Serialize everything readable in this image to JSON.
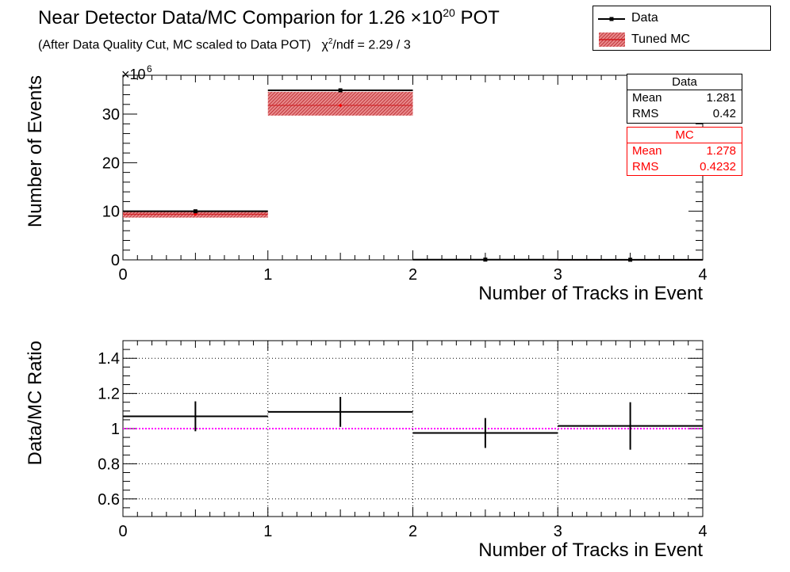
{
  "title": {
    "main": "Near Detector Data/MC Comparion for 1.26 ×10",
    "exponent": "20",
    "suffix": " POT"
  },
  "subtitle": {
    "left": "(After Data Quality Cut, MC scaled to Data POT)",
    "chi_symbol": "χ",
    "chi_exp": "2",
    "chi_rest": "/ndf = 2.29 / 3"
  },
  "legend": {
    "data_label": "Data",
    "mc_label": "Tuned MC"
  },
  "stats_data": {
    "header": "Data",
    "mean_label": "Mean",
    "mean_value": "1.281",
    "rms_label": "RMS",
    "rms_value": "0.42"
  },
  "stats_mc": {
    "header": "MC",
    "mean_label": "Mean",
    "mean_value": "1.278",
    "rms_label": "RMS",
    "rms_value": "0.4232"
  },
  "colors": {
    "data": "#000000",
    "mc": "#d0181c",
    "ratio_line": "#ff00ff"
  },
  "chart_data": [
    {
      "type": "bar",
      "xlabel": "Number of Tracks in Event",
      "ylabel": "Number of Events",
      "exponent_label": "×10",
      "exponent_power": "6",
      "xlim": [
        0,
        4
      ],
      "ylim": [
        0,
        38
      ],
      "xticks": [
        "0",
        "1",
        "2",
        "3",
        "4"
      ],
      "yticks": [
        "0",
        "10",
        "20",
        "30"
      ],
      "bin_edges": [
        0,
        1,
        2,
        3,
        4
      ],
      "series": [
        {
          "name": "Data",
          "values": [
            10.0,
            34.9,
            0.05,
            0.02
          ]
        },
        {
          "name": "Tuned MC",
          "values": [
            9.4,
            31.8,
            0.05,
            0.02
          ],
          "band_low": [
            8.7,
            29.7,
            0.0,
            0.0
          ],
          "band_high": [
            10.1,
            34.6,
            0.1,
            0.05
          ]
        }
      ]
    },
    {
      "type": "scatter",
      "xlabel": "Number of Tracks in Event",
      "ylabel": "Data/MC Ratio",
      "xlim": [
        0,
        4
      ],
      "ylim": [
        0.5,
        1.5
      ],
      "xticks": [
        "0",
        "1",
        "2",
        "3",
        "4"
      ],
      "yticks": [
        "0.6",
        "0.8",
        "1",
        "1.2",
        "1.4"
      ],
      "grid": true,
      "reference_line": 1.0,
      "bin_edges": [
        0,
        1,
        2,
        3,
        4
      ],
      "values": [
        1.07,
        1.095,
        0.975,
        1.015
      ],
      "errors": [
        0.085,
        0.085,
        0.085,
        0.135
      ]
    }
  ]
}
